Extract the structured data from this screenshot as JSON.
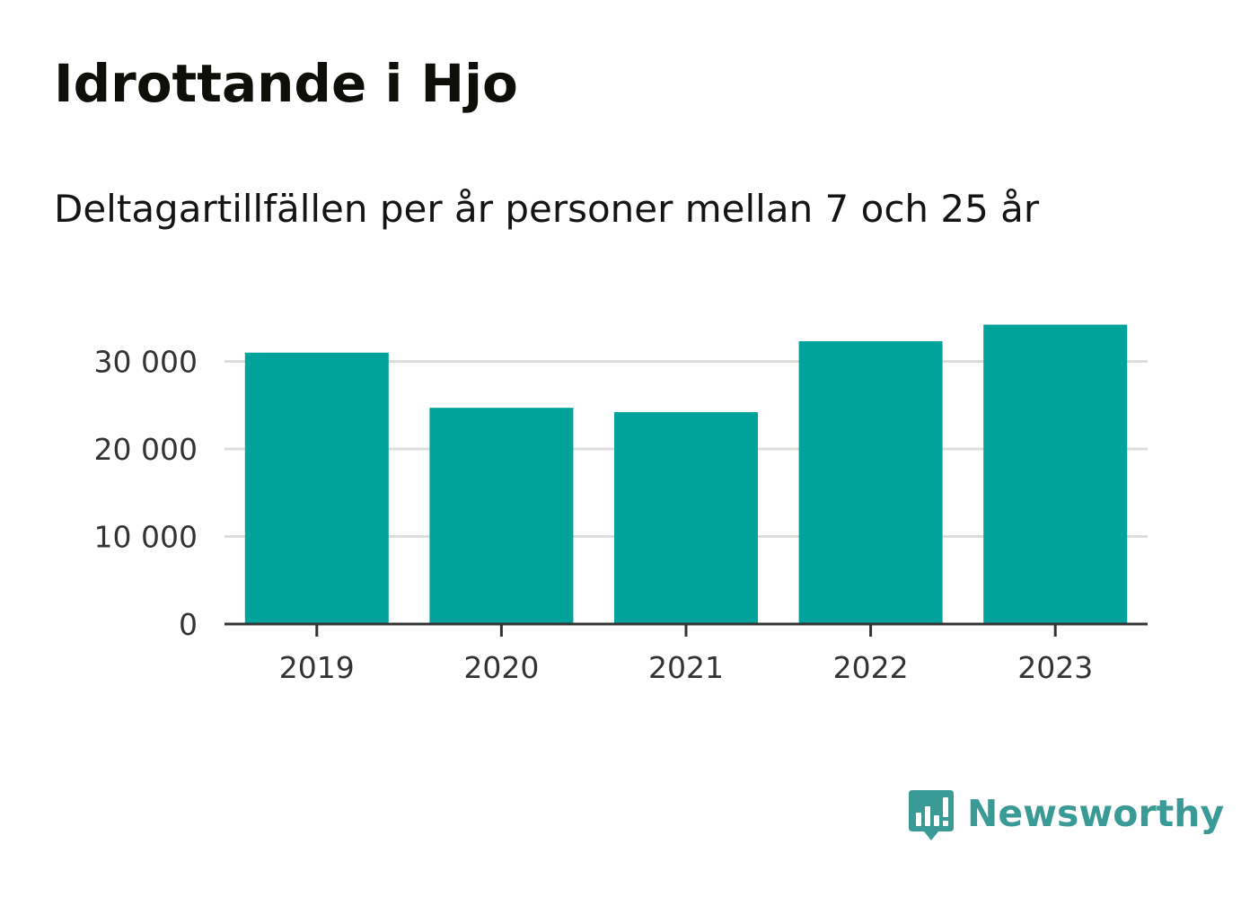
{
  "title": "Idrottande i Hjo",
  "subtitle": "Deltagartillfällen per år personer mellan 7 och 25 år",
  "brand": {
    "name": "Newsworthy",
    "color": "#3a9a96",
    "icon": "newsworthy-logo-icon"
  },
  "colors": {
    "bar": "#00a39a",
    "grid": "#dddddd",
    "axis": "#333333"
  },
  "chart_data": {
    "type": "bar",
    "title": "Idrottande i Hjo",
    "subtitle": "Deltagartillfällen per år personer mellan 7 och 25 år",
    "xlabel": "",
    "ylabel": "",
    "categories": [
      "2019",
      "2020",
      "2021",
      "2022",
      "2023"
    ],
    "values": [
      31000,
      24700,
      24200,
      32300,
      34200
    ],
    "ylim": [
      0,
      35000
    ],
    "yticks": [
      0,
      10000,
      20000,
      30000
    ],
    "ytick_labels": [
      "0",
      "10 000",
      "20 000",
      "30 000"
    ],
    "grid": true,
    "legend": "none"
  }
}
